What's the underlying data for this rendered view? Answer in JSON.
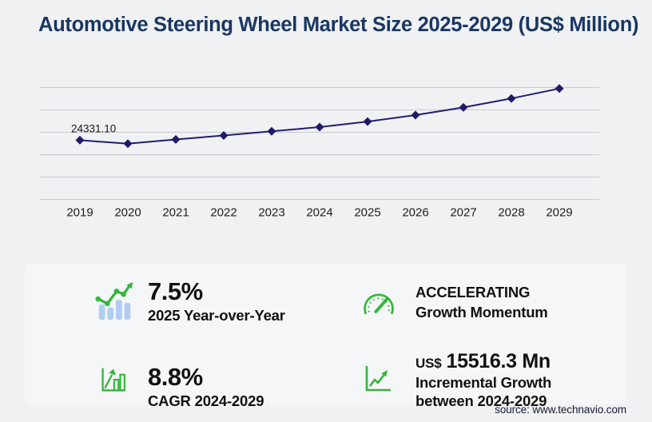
{
  "title": "Automotive Steering Wheel Market Size 2025-2029 (US$ Million)",
  "source": "source: www.technavio.com",
  "colors": {
    "title_navy": "#1a3763",
    "series_line": "#221e6e",
    "marker": "#1e1a68",
    "gridline": "#c9c9ce",
    "axis_text": "#1d1d1d",
    "green": "#34b63b",
    "light_blue": "#b0cdf1",
    "page_bg": "#f0f1f3",
    "panel_bg": "#f5f6f7"
  },
  "chart_data": {
    "type": "line",
    "title": "Automotive Steering Wheel Market Size 2025-2029 (US$ Million)",
    "categories": [
      "2019",
      "2020",
      "2021",
      "2022",
      "2023",
      "2024",
      "2025",
      "2026",
      "2027",
      "2028",
      "2029"
    ],
    "values": [
      24331.1,
      22900,
      24600,
      26200,
      27900,
      29580,
      31800,
      34400,
      37500,
      41100,
      45096.3
    ],
    "data_labels": {
      "2019": "24331.10"
    },
    "xlabel": "",
    "ylabel": "",
    "ylim": [
      500,
      45500
    ],
    "grid": "horizontal",
    "gridline_count": 6,
    "marker": "diamond",
    "legend": false
  },
  "stats": {
    "yoy": {
      "icon": "bar-chart-growth-icon",
      "value": "7.5%",
      "label": "2025 Year-over-Year"
    },
    "cagr": {
      "icon": "bar-chart-arrow-icon",
      "value": "8.8%",
      "label": "CAGR 2024-2029"
    },
    "momentum": {
      "icon": "speedometer-icon",
      "value": "ACCELERATING",
      "label": "Growth Momentum"
    },
    "incremental": {
      "icon": "line-chart-arrow-icon",
      "currency": "US$",
      "value": "15516.3 Mn",
      "label_line1": "Incremental Growth",
      "label_line2": "between 2024-2029"
    }
  }
}
